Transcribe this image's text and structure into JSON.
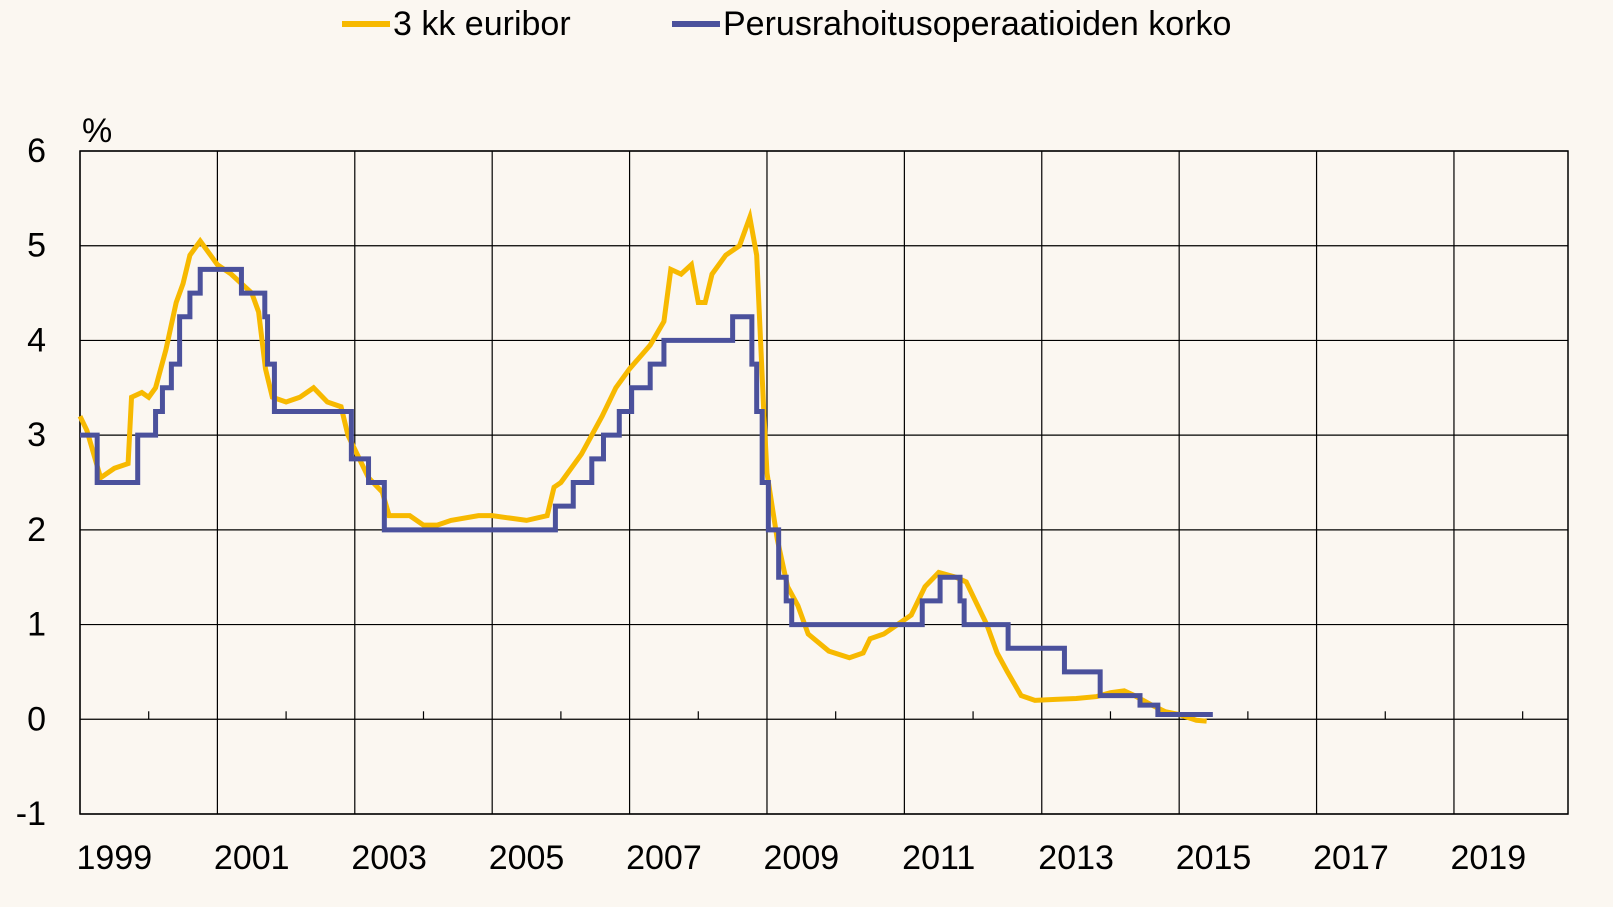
{
  "chart_data": {
    "type": "line",
    "y_label": "%",
    "xlim": [
      1999,
      2020.66
    ],
    "ylim": [
      -1,
      6
    ],
    "xticks": [
      1999,
      2001,
      2003,
      2005,
      2007,
      2009,
      2011,
      2013,
      2015,
      2017,
      2019
    ],
    "minor_xticks": [
      2000,
      2002,
      2004,
      2006,
      2008,
      2010,
      2012,
      2014,
      2016,
      2018,
      2020
    ],
    "yticks": [
      -1,
      0,
      1,
      2,
      3,
      4,
      5,
      6
    ],
    "grid": true,
    "legend": "top",
    "series": [
      {
        "name": "3 kk euribor",
        "color": "#f7b900",
        "step": false,
        "x": [
          1999.0,
          1999.1,
          1999.3,
          1999.5,
          1999.7,
          1999.75,
          1999.9,
          2000.0,
          2000.1,
          2000.25,
          2000.4,
          2000.5,
          2000.6,
          2000.75,
          2000.9,
          2001.0,
          2001.2,
          2001.35,
          2001.5,
          2001.6,
          2001.7,
          2001.8,
          2002.0,
          2002.2,
          2002.4,
          2002.6,
          2002.8,
          2002.9,
          2003.0,
          2003.2,
          2003.4,
          2003.5,
          2003.8,
          2004.0,
          2004.2,
          2004.4,
          2004.8,
          2005.0,
          2005.5,
          2005.8,
          2005.9,
          2006.0,
          2006.3,
          2006.6,
          2006.8,
          2007.0,
          2007.3,
          2007.5,
          2007.6,
          2007.75,
          2007.9,
          2008.0,
          2008.1,
          2008.2,
          2008.4,
          2008.6,
          2008.75,
          2008.85,
          2008.95,
          2009.0,
          2009.15,
          2009.3,
          2009.45,
          2009.6,
          2009.9,
          2010.2,
          2010.4,
          2010.5,
          2010.7,
          2010.9,
          2011.1,
          2011.3,
          2011.5,
          2011.75,
          2011.9,
          2012.0,
          2012.2,
          2012.35,
          2012.5,
          2012.7,
          2012.9,
          2013.2,
          2013.5,
          2013.8,
          2014.0,
          2014.2,
          2014.35,
          2014.6,
          2014.8,
          2015.0,
          2015.25,
          2015.4
        ],
        "values": [
          3.2,
          3.05,
          2.55,
          2.65,
          2.7,
          3.4,
          3.45,
          3.4,
          3.5,
          3.9,
          4.4,
          4.6,
          4.9,
          5.05,
          4.9,
          4.8,
          4.7,
          4.6,
          4.5,
          4.3,
          3.7,
          3.4,
          3.35,
          3.4,
          3.5,
          3.35,
          3.3,
          3.0,
          2.85,
          2.55,
          2.4,
          2.15,
          2.15,
          2.05,
          2.05,
          2.1,
          2.15,
          2.15,
          2.1,
          2.15,
          2.45,
          2.5,
          2.8,
          3.2,
          3.5,
          3.7,
          3.95,
          4.2,
          4.75,
          4.7,
          4.8,
          4.4,
          4.4,
          4.7,
          4.9,
          5.0,
          5.3,
          4.9,
          3.3,
          2.6,
          1.9,
          1.4,
          1.2,
          0.9,
          0.72,
          0.65,
          0.7,
          0.85,
          0.9,
          1.0,
          1.1,
          1.4,
          1.55,
          1.5,
          1.45,
          1.3,
          1.0,
          0.7,
          0.5,
          0.25,
          0.2,
          0.21,
          0.22,
          0.24,
          0.28,
          0.3,
          0.25,
          0.15,
          0.08,
          0.05,
          -0.01,
          -0.02
        ]
      },
      {
        "name": "Perusrahoitusoperaatioiden korko",
        "color": "#4b519c",
        "step": true,
        "x": [
          1999.0,
          1999.25,
          1999.84,
          2000.1,
          2000.2,
          2000.33,
          2000.45,
          2000.6,
          2000.75,
          2001.35,
          2001.69,
          2001.73,
          2001.83,
          2002.95,
          2003.2,
          2003.43,
          2005.92,
          2006.18,
          2006.45,
          2006.62,
          2006.85,
          2007.03,
          2007.3,
          2007.5,
          2008.5,
          2008.78,
          2008.85,
          2008.93,
          2009.02,
          2009.17,
          2009.28,
          2009.36,
          2011.26,
          2011.52,
          2011.81,
          2011.87,
          2012.51,
          2013.33,
          2013.85,
          2014.43,
          2014.69,
          2015.49
        ],
        "values": [
          3.0,
          2.5,
          3.0,
          3.25,
          3.5,
          3.75,
          4.25,
          4.5,
          4.75,
          4.5,
          4.25,
          3.75,
          3.25,
          2.75,
          2.5,
          2.0,
          2.25,
          2.5,
          2.75,
          3.0,
          3.25,
          3.5,
          3.75,
          4.0,
          4.25,
          3.75,
          3.25,
          2.5,
          2.0,
          1.5,
          1.25,
          1.0,
          1.25,
          1.5,
          1.25,
          1.0,
          0.75,
          0.5,
          0.25,
          0.15,
          0.05,
          0.05
        ]
      }
    ]
  }
}
